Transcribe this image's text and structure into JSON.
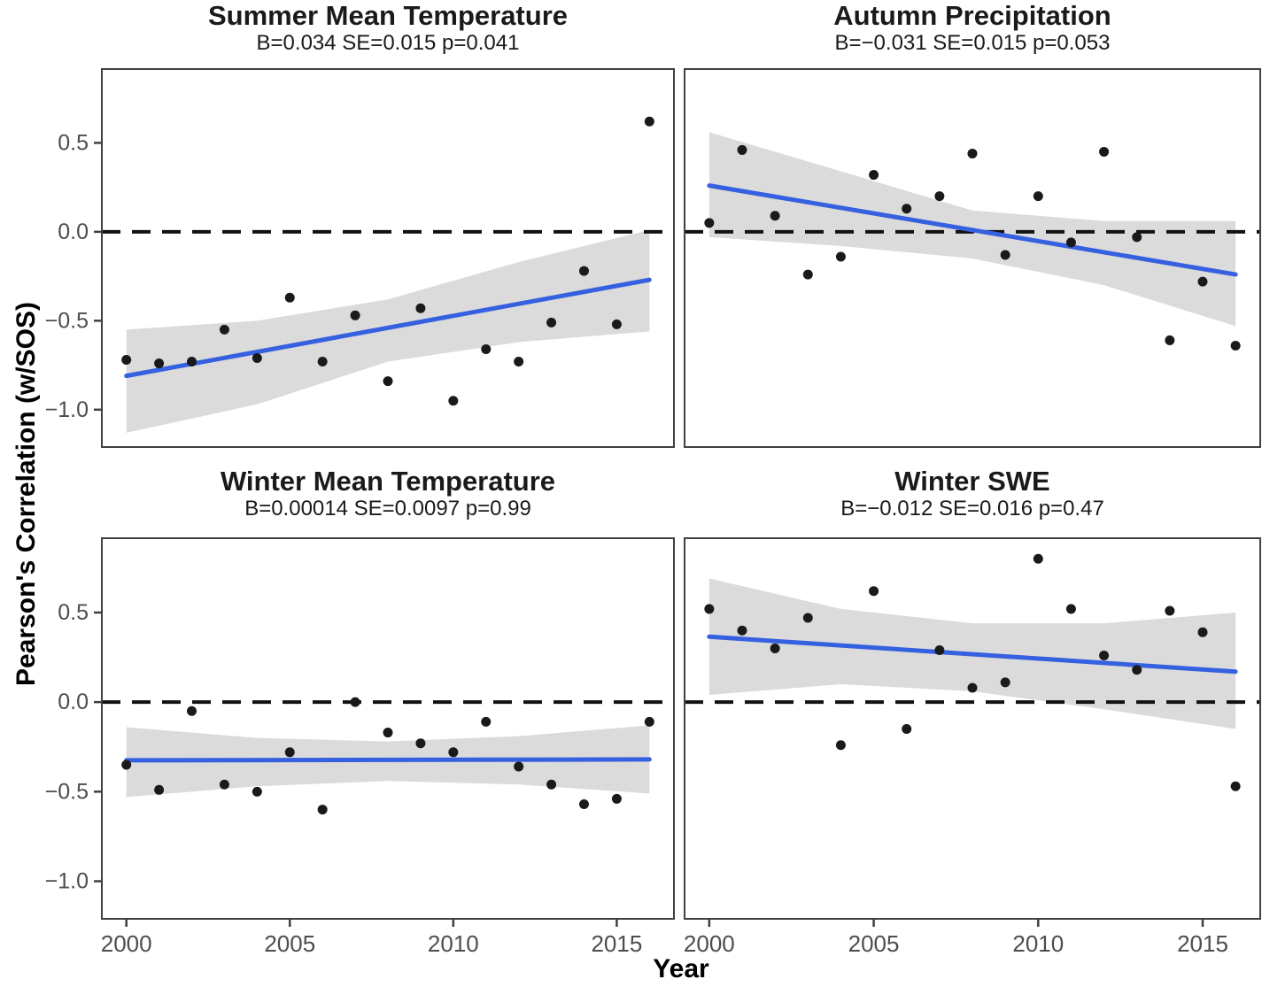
{
  "figure": {
    "y_axis_label": "Pearson's Correlation (w/SOS)",
    "x_axis_label": "Year",
    "colors": {
      "trend_line": "#3560E0",
      "ci_band": "#DBDBDB",
      "point": "#1A1A1A",
      "zero_line": "#111111",
      "panel_border": "#404040",
      "tick_text": "#4D4D4D",
      "title_text": "#1A1A1A"
    }
  },
  "axes": {
    "xlim": [
      1999.25,
      2016.75
    ],
    "ylim": [
      -1.21,
      0.915
    ],
    "x_tick_values": [
      2000,
      2005,
      2010,
      2015
    ],
    "x_tick_labels": [
      "2000",
      "2005",
      "2010",
      "2015"
    ],
    "y_tick_values": [
      0.5,
      0.0,
      -0.5,
      -1.0
    ],
    "y_tick_labels": [
      "0.5",
      "0.0",
      "−0.5",
      "−1.0"
    ],
    "grid": "off",
    "zero_reference_line": 0.0
  },
  "chart_data": [
    {
      "type": "scatter",
      "title": "Summer Mean Temperature",
      "subtitle": "B=0.034 SE=0.015 p=0.041",
      "stats": {
        "B": "0.034",
        "SE": "0.015",
        "p": "0.041"
      },
      "x": [
        2000,
        2001,
        2002,
        2003,
        2004,
        2005,
        2006,
        2007,
        2008,
        2009,
        2010,
        2011,
        2012,
        2013,
        2014,
        2015,
        2016
      ],
      "values": [
        -0.72,
        -0.74,
        -0.73,
        -0.55,
        -0.71,
        -0.37,
        -0.73,
        -0.47,
        -0.84,
        -0.43,
        -0.95,
        -0.66,
        -0.73,
        -0.51,
        -0.22,
        -0.52,
        0.62
      ],
      "trend": {
        "x": [
          2000,
          2016
        ],
        "y": [
          -0.81,
          -0.27
        ]
      },
      "ci_band": {
        "x": [
          2000,
          2004,
          2008,
          2012,
          2016
        ],
        "upper": [
          -0.55,
          -0.5,
          -0.38,
          -0.17,
          0.01
        ],
        "lower": [
          -1.13,
          -0.97,
          -0.73,
          -0.62,
          -0.56
        ]
      }
    },
    {
      "type": "scatter",
      "title": "Autumn Precipitation",
      "subtitle": "B=−0.031 SE=0.015 p=0.053",
      "stats": {
        "B": "−0.031",
        "SE": "0.015",
        "p": "0.053"
      },
      "x": [
        2000,
        2001,
        2002,
        2003,
        2004,
        2005,
        2006,
        2007,
        2008,
        2009,
        2010,
        2011,
        2012,
        2013,
        2014,
        2015,
        2016
      ],
      "values": [
        0.05,
        0.46,
        0.09,
        -0.24,
        -0.14,
        0.32,
        0.13,
        0.2,
        0.44,
        -0.13,
        0.2,
        -0.06,
        0.45,
        -0.03,
        -0.61,
        -0.28,
        -0.64
      ],
      "trend": {
        "x": [
          2000,
          2016
        ],
        "y": [
          0.26,
          -0.24
        ]
      },
      "ci_band": {
        "x": [
          2000,
          2004,
          2008,
          2012,
          2016
        ],
        "upper": [
          0.56,
          0.34,
          0.12,
          0.06,
          0.06
        ],
        "lower": [
          -0.03,
          -0.08,
          -0.15,
          -0.3,
          -0.53
        ]
      }
    },
    {
      "type": "scatter",
      "title": "Winter Mean Temperature",
      "subtitle": "B=0.00014 SE=0.0097 p=0.99",
      "stats": {
        "B": "0.00014",
        "SE": "0.0097",
        "p": "0.99"
      },
      "x": [
        2000,
        2001,
        2002,
        2003,
        2004,
        2005,
        2006,
        2007,
        2008,
        2009,
        2010,
        2011,
        2012,
        2013,
        2014,
        2015,
        2016
      ],
      "values": [
        -0.35,
        -0.49,
        -0.05,
        -0.46,
        -0.5,
        -0.28,
        -0.6,
        0.0,
        -0.17,
        -0.23,
        -0.28,
        -0.11,
        -0.36,
        -0.46,
        -0.57,
        -0.54,
        -0.11
      ],
      "trend": {
        "x": [
          2000,
          2016
        ],
        "y": [
          -0.325,
          -0.32
        ]
      },
      "ci_band": {
        "x": [
          2000,
          2004,
          2008,
          2012,
          2016
        ],
        "upper": [
          -0.14,
          -0.2,
          -0.22,
          -0.19,
          -0.13
        ],
        "lower": [
          -0.53,
          -0.47,
          -0.44,
          -0.46,
          -0.51
        ]
      }
    },
    {
      "type": "scatter",
      "title": "Winter SWE",
      "subtitle": "B=−0.012 SE=0.016 p=0.47",
      "stats": {
        "B": "−0.012",
        "SE": "0.016",
        "p": "0.47"
      },
      "x": [
        2000,
        2001,
        2002,
        2003,
        2004,
        2005,
        2006,
        2007,
        2008,
        2009,
        2010,
        2011,
        2012,
        2013,
        2014,
        2015,
        2016
      ],
      "values": [
        0.52,
        0.4,
        0.3,
        0.47,
        -0.24,
        0.62,
        -0.15,
        0.29,
        0.08,
        0.11,
        0.8,
        0.52,
        0.26,
        0.18,
        0.51,
        0.39,
        -0.47
      ],
      "trend": {
        "x": [
          2000,
          2016
        ],
        "y": [
          0.365,
          0.17
        ]
      },
      "ci_band": {
        "x": [
          2000,
          2004,
          2008,
          2012,
          2016
        ],
        "upper": [
          0.69,
          0.52,
          0.44,
          0.44,
          0.5
        ],
        "lower": [
          0.04,
          0.1,
          0.06,
          -0.04,
          -0.15
        ]
      }
    }
  ]
}
